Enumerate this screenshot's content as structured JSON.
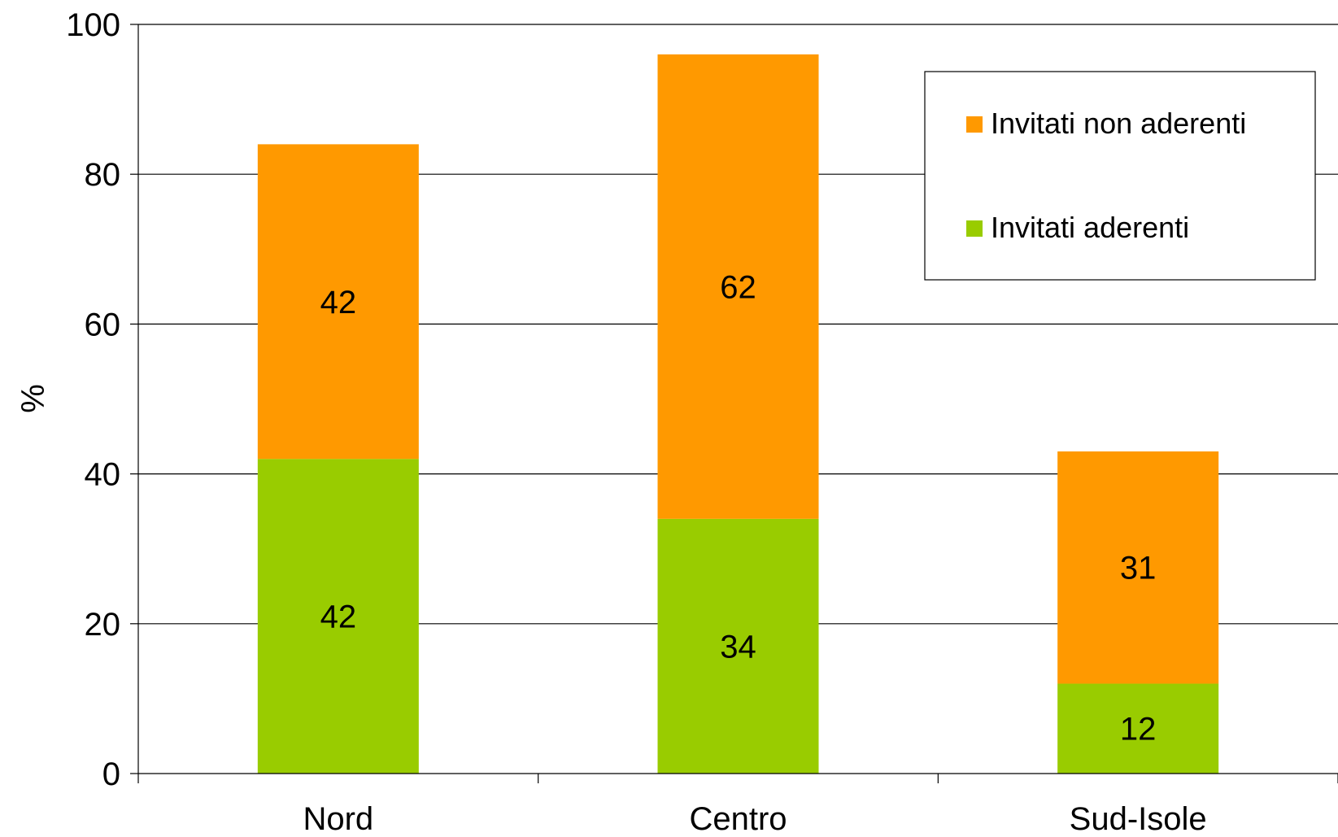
{
  "chart_data": {
    "type": "bar",
    "stacked": true,
    "categories": [
      "Nord",
      "Centro",
      "Sud-Isole"
    ],
    "series": [
      {
        "name": "Invitati aderenti",
        "color": "#99cc00",
        "values": [
          42,
          34,
          12
        ]
      },
      {
        "name": "Invitati non aderenti",
        "color": "#ff9900",
        "values": [
          42,
          62,
          31
        ]
      }
    ],
    "title": "",
    "xlabel": "",
    "ylabel": "%",
    "ylim": [
      0,
      100
    ],
    "yticks": [
      "0",
      "20",
      "40",
      "60",
      "80",
      "100"
    ],
    "grid": true,
    "legend_position": "top-right"
  }
}
